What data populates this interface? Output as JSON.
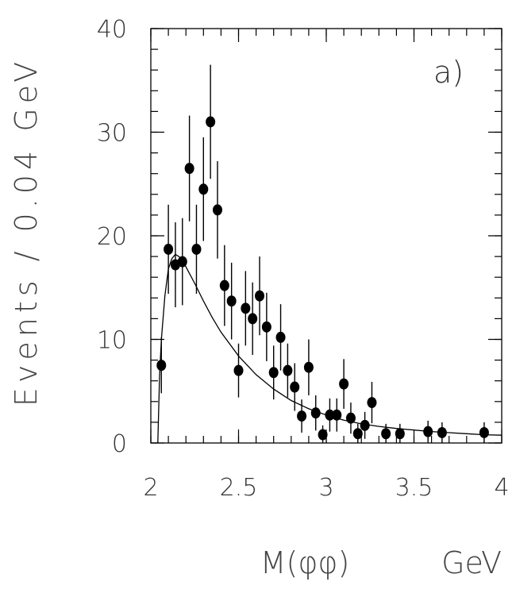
{
  "chart_data": {
    "type": "scatter",
    "panel_label": "a)",
    "ylabel": "Events / 0.04 GeV",
    "xlabel": "M(φφ)",
    "xunit": "GeV",
    "xlim": [
      2.0,
      4.0
    ],
    "ylim": [
      0,
      40
    ],
    "xticks": [
      "2",
      "2.5",
      "3",
      "3.5",
      "4"
    ],
    "yticks": [
      "0",
      "10",
      "20",
      "30",
      "40"
    ],
    "xtick_values": [
      2,
      2.5,
      3,
      3.5,
      4
    ],
    "ytick_values": [
      0,
      10,
      20,
      30,
      40
    ],
    "series": [
      {
        "style": "points-with-errors",
        "x": [
          2.06,
          2.1,
          2.14,
          2.18,
          2.22,
          2.26,
          2.3,
          2.34,
          2.38,
          2.42,
          2.46,
          2.5,
          2.54,
          2.58,
          2.62,
          2.66,
          2.7,
          2.74,
          2.78,
          2.82,
          2.86,
          2.9,
          2.94,
          2.98,
          3.02,
          3.06,
          3.1,
          3.14,
          3.18,
          3.22,
          3.26,
          3.34,
          3.42,
          3.58,
          3.66,
          3.9
        ],
        "y": [
          7.5,
          18.7,
          17.2,
          17.5,
          26.5,
          18.7,
          24.5,
          31.0,
          22.5,
          15.2,
          13.7,
          7.0,
          13.0,
          12.0,
          14.2,
          11.2,
          6.8,
          10.2,
          7.0,
          5.4,
          2.6,
          7.3,
          2.9,
          0.8,
          2.7,
          2.7,
          5.7,
          2.4,
          0.9,
          1.7,
          3.9,
          0.9,
          0.9,
          1.1,
          1.0,
          1.0
        ],
        "err": [
          2.7,
          4.3,
          4.1,
          4.2,
          5.1,
          4.3,
          5.0,
          5.5,
          4.7,
          3.9,
          3.7,
          2.6,
          3.6,
          3.5,
          3.8,
          3.3,
          2.6,
          3.2,
          2.6,
          2.3,
          1.6,
          2.7,
          1.7,
          0.9,
          1.6,
          1.6,
          2.4,
          1.5,
          0.95,
          1.3,
          2.0,
          0.95,
          0.95,
          1.05,
          1.0,
          1.0
        ]
      },
      {
        "style": "fit-curve",
        "x": [
          2.04,
          2.05,
          2.06,
          2.08,
          2.1,
          2.12,
          2.14,
          2.16,
          2.18,
          2.2,
          2.25,
          2.3,
          2.35,
          2.4,
          2.5,
          2.6,
          2.7,
          2.8,
          2.9,
          3.0,
          3.1,
          3.2,
          3.3,
          3.4,
          3.5,
          3.6,
          3.7,
          3.8,
          3.9,
          4.0
        ],
        "y": [
          0.0,
          6.5,
          10.0,
          14.2,
          16.8,
          17.8,
          18.2,
          18.0,
          17.6,
          17.0,
          15.4,
          13.7,
          12.1,
          10.7,
          8.4,
          6.6,
          5.2,
          4.1,
          3.3,
          2.7,
          2.2,
          1.85,
          1.6,
          1.4,
          1.25,
          1.1,
          1.0,
          0.9,
          0.8,
          0.75
        ]
      }
    ],
    "grid": false,
    "legend": false
  }
}
